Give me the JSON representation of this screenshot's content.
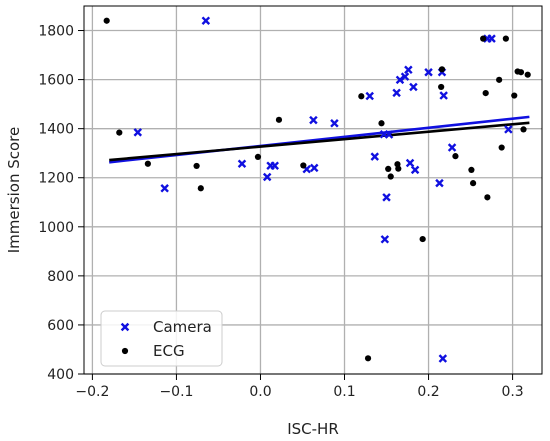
{
  "chart_data": {
    "type": "scatter",
    "xlabel": "ISC-HR",
    "ylabel": "Immersion Score",
    "xlim": [
      -0.21,
      0.335
    ],
    "ylim": [
      400,
      1900
    ],
    "x_ticks": [
      -0.2,
      -0.1,
      0.0,
      0.1,
      0.2,
      0.3
    ],
    "x_tick_labels": [
      "−0.2",
      "−0.1",
      "0.0",
      "0.1",
      "0.2",
      "0.3"
    ],
    "y_ticks": [
      400,
      600,
      800,
      1000,
      1200,
      1400,
      1600,
      1800
    ],
    "y_tick_labels": [
      "400",
      "600",
      "800",
      "1000",
      "1200",
      "1400",
      "1600",
      "1800"
    ],
    "grid": true,
    "legend_position": "bottom-left",
    "series": [
      {
        "name": "Camera",
        "marker": "x",
        "color": "#1010e0",
        "points": [
          [
            -0.065,
            1840
          ],
          [
            -0.146,
            1385
          ],
          [
            -0.114,
            1157
          ],
          [
            -0.022,
            1257
          ],
          [
            0.008,
            1203
          ],
          [
            0.012,
            1249
          ],
          [
            0.017,
            1249
          ],
          [
            0.055,
            1235
          ],
          [
            0.063,
            1435
          ],
          [
            0.064,
            1240
          ],
          [
            0.088,
            1422
          ],
          [
            0.13,
            1533
          ],
          [
            0.136,
            1286
          ],
          [
            0.147,
            1377
          ],
          [
            0.148,
            949
          ],
          [
            0.15,
            1120
          ],
          [
            0.153,
            1376
          ],
          [
            0.162,
            1546
          ],
          [
            0.166,
            1599
          ],
          [
            0.172,
            1612
          ],
          [
            0.176,
            1640
          ],
          [
            0.178,
            1260
          ],
          [
            0.182,
            1570
          ],
          [
            0.184,
            1232
          ],
          [
            0.2,
            1630
          ],
          [
            0.213,
            1178
          ],
          [
            0.216,
            1630
          ],
          [
            0.217,
            463
          ],
          [
            0.218,
            1535
          ],
          [
            0.228,
            1323
          ],
          [
            0.27,
            1767
          ],
          [
            0.275,
            1767
          ],
          [
            0.295,
            1397
          ]
        ]
      },
      {
        "name": "ECG",
        "marker": "o",
        "color": "#000000",
        "points": [
          [
            -0.183,
            1840
          ],
          [
            -0.168,
            1384
          ],
          [
            -0.134,
            1257
          ],
          [
            -0.076,
            1248
          ],
          [
            -0.071,
            1157
          ],
          [
            -0.003,
            1285
          ],
          [
            0.022,
            1436
          ],
          [
            0.051,
            1250
          ],
          [
            0.12,
            1532
          ],
          [
            0.128,
            464
          ],
          [
            0.144,
            1422
          ],
          [
            0.152,
            1236
          ],
          [
            0.155,
            1205
          ],
          [
            0.163,
            1255
          ],
          [
            0.164,
            1237
          ],
          [
            0.193,
            950
          ],
          [
            0.215,
            1570
          ],
          [
            0.216,
            1642
          ],
          [
            0.232,
            1288
          ],
          [
            0.251,
            1232
          ],
          [
            0.253,
            1178
          ],
          [
            0.265,
            1767
          ],
          [
            0.268,
            1545
          ],
          [
            0.27,
            1120
          ],
          [
            0.284,
            1599
          ],
          [
            0.287,
            1323
          ],
          [
            0.292,
            1767
          ],
          [
            0.302,
            1535
          ],
          [
            0.306,
            1633
          ],
          [
            0.31,
            1630
          ],
          [
            0.313,
            1397
          ],
          [
            0.318,
            1620
          ]
        ]
      }
    ],
    "fit_lines": [
      {
        "series": "Camera",
        "color": "#1010e0",
        "x": [
          -0.18,
          0.32
        ],
        "y": [
          1263,
          1448
        ]
      },
      {
        "series": "ECG",
        "color": "#000000",
        "x": [
          -0.18,
          0.32
        ],
        "y": [
          1272,
          1424
        ]
      }
    ]
  }
}
